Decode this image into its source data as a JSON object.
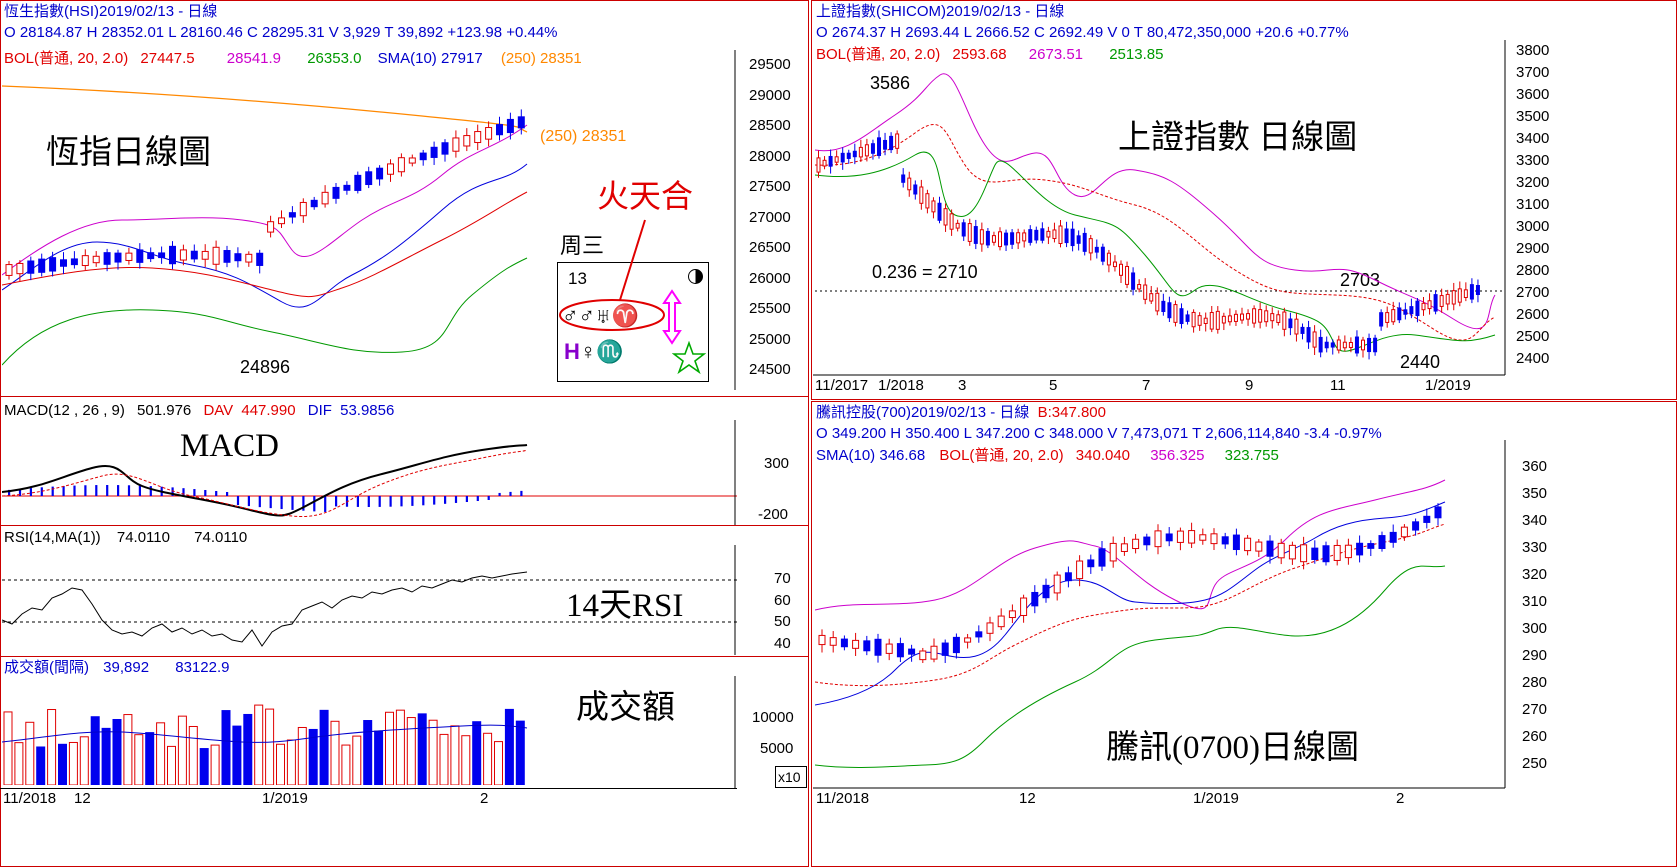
{
  "hsi": {
    "title": "恆生指數(HSI)2019/02/13   - 日線",
    "ohlc": "O 28184.87 H 28352.01 L 28160.46 C 28295.31 V 3,929 T 39,892 +123.98  +0.44%",
    "bol_label": "BOL(普通, 20, 2.0)",
    "bol_mid": "27447.5",
    "bol_up": "28541.9",
    "bol_low": "26353.0",
    "sma10": "SMA(10) 27917",
    "sma250": "(250) 28351",
    "sma250_tag": "(250) 28351",
    "chart_title": "恆指日線圖",
    "low_label": "24896",
    "y_ticks": [
      "29500",
      "29000",
      "28500",
      "28000",
      "27500",
      "27000",
      "26500",
      "26000",
      "25500",
      "25000",
      "24500"
    ],
    "astro": {
      "label_fire": "火天合",
      "weekday": "周三",
      "day": "13",
      "row1": "♂♂♅♈",
      "row2_h": "H",
      "row2_v": "♀",
      "row2_sc": "♏"
    }
  },
  "macd": {
    "label": "MACD(12 , 26 , 9)",
    "value": "501.976",
    "dav_label": "DAV",
    "dav": "447.990",
    "dif_label": "DIF",
    "dif": "53.9856",
    "title": "MACD",
    "y_ticks": [
      "300",
      "-200"
    ]
  },
  "rsi": {
    "label": "RSI(14,MA(1))",
    "v1": "74.0110",
    "v2": "74.0110",
    "title": "14天RSI",
    "y_ticks": [
      "70",
      "60",
      "50",
      "40"
    ]
  },
  "volume": {
    "label": "成交額(間隔)",
    "v1": "39,892",
    "v2": "83122.9",
    "title": "成交額",
    "y_ticks": [
      "10000",
      "5000"
    ],
    "unit": "x10"
  },
  "hsi_x_labels": [
    "11/2018",
    "12",
    "1/2019",
    "2"
  ],
  "shcomp": {
    "title": "上證指數(SHICOM)2019/02/13   - 日線",
    "ohlc": "O 2674.37 H 2693.44 L 2666.52 C 2692.49 V 0 T 80,472,350,000  +20.6  +0.77%",
    "bol_label": "BOL(普通, 20, 2.0)",
    "bol_mid": "2593.68",
    "bol_up": "2673.51",
    "bol_low": "2513.85",
    "chart_title": "上證指數 日線圖",
    "high_label": "3586",
    "fib_label": "0.236 = 2710",
    "r_label": "2703",
    "low_label": "2440",
    "y_ticks": [
      "3800",
      "3700",
      "3600",
      "3500",
      "3400",
      "3300",
      "3200",
      "3100",
      "3000",
      "2900",
      "2800",
      "2700",
      "2600",
      "2500",
      "2400"
    ],
    "x_labels": [
      "11/2017",
      "1/2018",
      "3",
      "5",
      "7",
      "9",
      "11",
      "1/2019"
    ]
  },
  "tencent": {
    "title": "騰訊控股(700)2019/02/13   - 日線",
    "b_label": "B:347.800",
    "ohlc": "O 349.200 H 350.400 L 347.200 C 348.000 V 7,473,071 T 2,606,114,840  -3.4  -0.97%",
    "sma10": "SMA(10) 346.68",
    "bol_label": "BOL(普通, 20, 2.0)",
    "bol_mid": "340.040",
    "bol_up": "356.325",
    "bol_low": "323.755",
    "chart_title": "騰訊(0700)日線圖",
    "y_ticks": [
      "360",
      "350",
      "340",
      "330",
      "320",
      "310",
      "300",
      "290",
      "280",
      "270",
      "260",
      "250"
    ],
    "x_labels": [
      "11/2018",
      "12",
      "1/2019",
      "2"
    ]
  },
  "chart_data": [
    {
      "type": "line",
      "title": "恆指日線圖",
      "y_range": [
        24500,
        29500
      ],
      "series": [
        {
          "name": "SMA(10)",
          "last": 27917
        },
        {
          "name": "(250)",
          "last": 28351
        }
      ],
      "annotations": [
        "24896",
        "(250) 28351",
        "火天合"
      ]
    },
    {
      "type": "line",
      "title": "上證指數 日線圖",
      "y_range": [
        2400,
        3800
      ],
      "annotations": [
        "3586",
        "0.236 = 2710",
        "2703",
        "2440"
      ]
    },
    {
      "type": "line",
      "title": "騰訊(0700)日線圖",
      "y_range": [
        250,
        360
      ],
      "series": [
        {
          "name": "SMA(10)",
          "last": 346.68
        }
      ]
    },
    {
      "type": "bar",
      "title": "成交額",
      "y_range": [
        0,
        10000
      ]
    }
  ],
  "colors": {
    "up": "#e00000",
    "down": "#0000ee",
    "bol_up": "#cc00cc",
    "bol_low": "#009900",
    "sma250": "#ff8800"
  }
}
